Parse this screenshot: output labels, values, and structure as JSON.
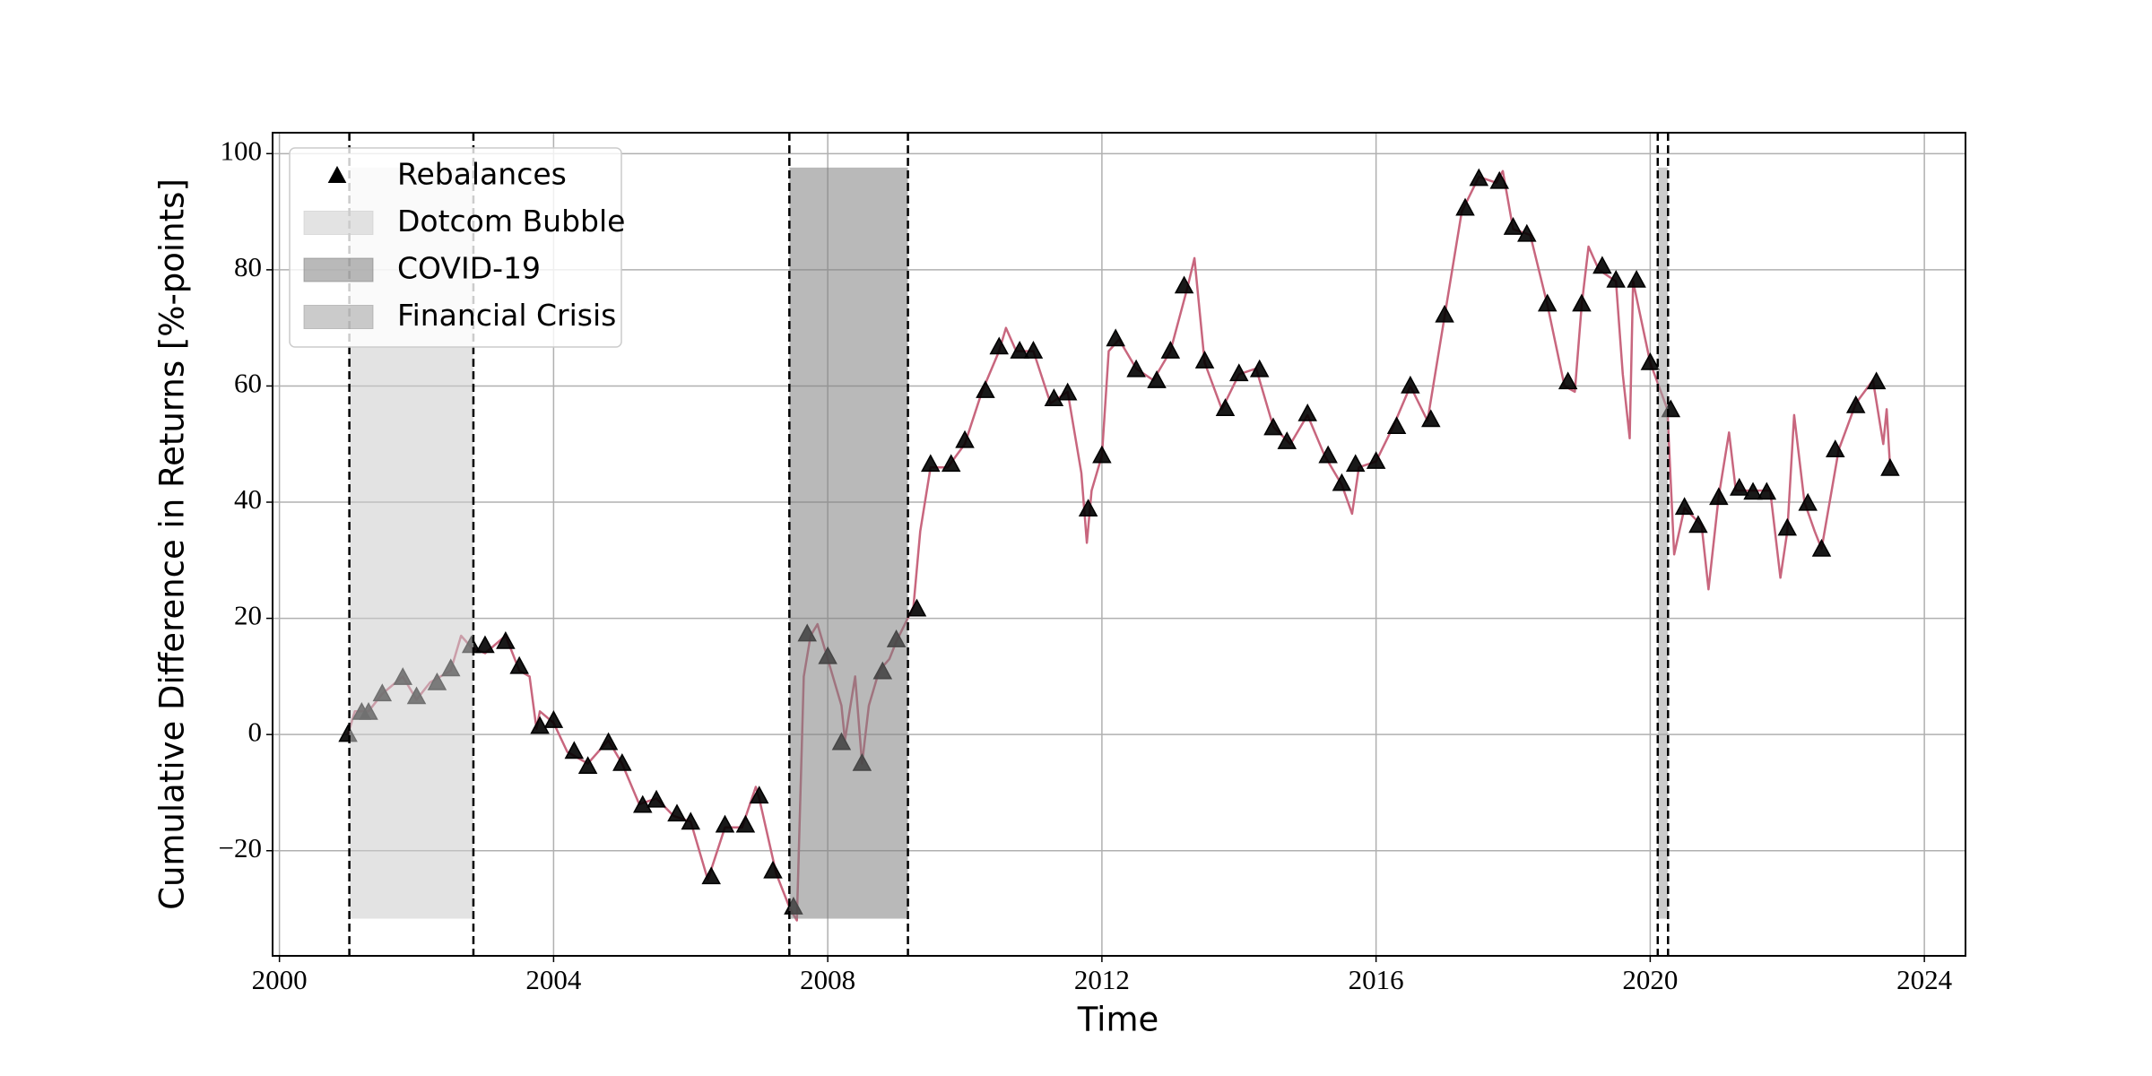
{
  "chart_data": {
    "type": "line",
    "xlabel": "Time",
    "ylabel": "Cumulative Difference in Returns [%-points]",
    "xlim": [
      1999.9,
      2024.6
    ],
    "ylim": [
      -38.1,
      103.6
    ],
    "xticks": [
      2000,
      2004,
      2008,
      2012,
      2016,
      2020,
      2024
    ],
    "yticks": [
      {
        "value": -20,
        "label": "−20"
      },
      0,
      20,
      40,
      60,
      80,
      100
    ],
    "grid": true,
    "legend": "upper left",
    "series": [
      {
        "type": "line",
        "color": "#c8667e",
        "x": [
          2001.0,
          2001.1,
          2001.3,
          2001.5,
          2001.8,
          2002.0,
          2002.2,
          2002.5,
          2002.65,
          2002.8,
          2003.0,
          2003.3,
          2003.5,
          2003.65,
          2003.75,
          2003.8,
          2004.0,
          2004.2,
          2004.5,
          2004.8,
          2005.0,
          2005.25,
          2005.5,
          2005.75,
          2006.0,
          2006.25,
          2006.5,
          2006.75,
          2006.95,
          2007.0,
          2007.25,
          2007.45,
          2007.55,
          2007.65,
          2007.75,
          2007.85,
          2008.0,
          2008.2,
          2008.25,
          2008.4,
          2008.5,
          2008.6,
          2008.75,
          2008.9,
          2009.0,
          2009.25,
          2009.35,
          2009.5,
          2009.75,
          2010.0,
          2010.25,
          2010.5,
          2010.6,
          2010.75,
          2011.0,
          2011.25,
          2011.5,
          2011.7,
          2011.78,
          2011.85,
          2012.0,
          2012.1,
          2012.25,
          2012.5,
          2012.75,
          2013.0,
          2013.25,
          2013.35,
          2013.5,
          2013.75,
          2014.0,
          2014.25,
          2014.5,
          2014.75,
          2015.0,
          2015.25,
          2015.5,
          2015.65,
          2015.75,
          2016.0,
          2016.25,
          2016.5,
          2016.75,
          2017.0,
          2017.25,
          2017.5,
          2017.75,
          2017.85,
          2018.0,
          2018.25,
          2018.5,
          2018.75,
          2018.9,
          2019.0,
          2019.1,
          2019.25,
          2019.5,
          2019.6,
          2019.7,
          2019.75,
          2020.0,
          2020.25,
          2020.35,
          2020.5,
          2020.75,
          2020.85,
          2021.0,
          2021.15,
          2021.25,
          2021.5,
          2021.75,
          2021.9,
          2022.0,
          2022.1,
          2022.25,
          2022.4,
          2022.5,
          2022.75,
          2023.0,
          2023.25,
          2023.4,
          2023.45,
          2023.5
        ],
        "values": [
          0,
          4,
          4,
          7,
          10,
          6,
          9,
          11,
          17,
          15,
          14,
          17,
          11,
          10,
          1,
          4,
          2,
          -3,
          -5,
          -1,
          -5,
          -12,
          -11,
          -14,
          -15,
          -25,
          -16,
          -16,
          -9,
          -11,
          -24,
          -30,
          -32,
          10,
          17,
          19,
          13,
          5,
          -1,
          10,
          -5,
          5,
          11,
          13,
          16,
          22,
          35,
          46,
          46,
          50,
          59,
          66,
          70,
          66,
          66,
          57,
          59,
          45,
          33,
          42,
          48,
          66,
          68,
          63,
          61,
          66,
          77,
          82,
          64,
          56,
          62,
          63,
          53,
          50,
          55,
          48,
          43,
          38,
          46,
          47,
          53,
          60,
          54,
          72,
          90,
          96,
          95,
          97,
          87,
          86,
          74,
          60,
          59,
          74,
          84,
          80,
          78,
          62,
          51,
          78,
          64,
          56,
          31,
          39,
          36,
          25,
          41,
          52,
          42,
          42,
          42,
          27,
          35,
          55,
          40,
          35,
          32,
          49,
          57,
          61,
          50,
          56,
          46
        ]
      },
      {
        "type": "scatter",
        "name": "Rebalances",
        "marker": "triangle",
        "color": "#000000",
        "x": [
          2001.0,
          2001.2,
          2001.3,
          2001.5,
          2001.8,
          2002.0,
          2002.3,
          2002.5,
          2002.8,
          2003.0,
          2003.3,
          2003.5,
          2003.8,
          2004.0,
          2004.3,
          2004.5,
          2004.8,
          2005.0,
          2005.3,
          2005.5,
          2005.8,
          2006.0,
          2006.3,
          2006.5,
          2006.8,
          2007.0,
          2007.2,
          2007.5,
          2007.7,
          2008.0,
          2008.2,
          2008.5,
          2008.8,
          2009.0,
          2009.3,
          2009.5,
          2009.8,
          2010.0,
          2010.3,
          2010.5,
          2010.8,
          2011.0,
          2011.3,
          2011.5,
          2011.8,
          2012.0,
          2012.2,
          2012.5,
          2012.8,
          2013.0,
          2013.2,
          2013.5,
          2013.8,
          2014.0,
          2014.3,
          2014.5,
          2014.7,
          2015.0,
          2015.3,
          2015.5,
          2015.7,
          2016.0,
          2016.3,
          2016.5,
          2016.8,
          2017.0,
          2017.3,
          2017.5,
          2017.8,
          2018.0,
          2018.2,
          2018.5,
          2018.8,
          2019.0,
          2019.3,
          2019.5,
          2019.8,
          2020.0,
          2020.3,
          2020.5,
          2020.7,
          2021.0,
          2021.3,
          2021.5,
          2021.7,
          2022.0,
          2022.3,
          2022.5,
          2022.7,
          2023.0,
          2023.3,
          2023.5
        ],
        "values": [
          0,
          3.8,
          3.8,
          7,
          9.8,
          6.5,
          8.9,
          11.3,
          15.3,
          15.3,
          16,
          11.7,
          1.4,
          2.4,
          -2.9,
          -5.5,
          -1.4,
          -5,
          -12.2,
          -11.3,
          -13.7,
          -15.1,
          -24.5,
          -15.6,
          -15.6,
          -10.6,
          -23.5,
          -29.7,
          17.3,
          13.4,
          -1.4,
          -5,
          10.8,
          16.3,
          21.6,
          46.5,
          46.5,
          50.6,
          59.2,
          66.7,
          66,
          66,
          57.8,
          58.8,
          38.8,
          48,
          68.1,
          62.8,
          60.9,
          66,
          77.2,
          64.3,
          56.1,
          62.1,
          62.8,
          52.8,
          50.4,
          55.2,
          48,
          43.2,
          46.5,
          47,
          53,
          60,
          54.2,
          72.2,
          90.6,
          95.7,
          95.2,
          87.3,
          86.1,
          74.1,
          60.7,
          74.1,
          80.6,
          78.2,
          78.2,
          64,
          55.9,
          39.1,
          36,
          40.8,
          42.4,
          41.7,
          41.7,
          35.5,
          39.8,
          31.9,
          49,
          56.6,
          60.7,
          45.8
        ]
      }
    ],
    "spans": [
      {
        "name": "Dotcom Bubble",
        "color": "#cccccc",
        "x": [
          2001.02,
          2002.83
        ],
        "y": [
          -31.7,
          97.6
        ]
      },
      {
        "name": "COVID-19",
        "color": "#808080",
        "x": [
          2007.44,
          2009.17
        ],
        "y": [
          -31.7,
          97.6
        ]
      },
      {
        "name": "Financial Crisis",
        "color": "#a0a0a0",
        "x": [
          2020.11,
          2020.26
        ],
        "y": [
          -31.7,
          97.6
        ]
      }
    ]
  }
}
